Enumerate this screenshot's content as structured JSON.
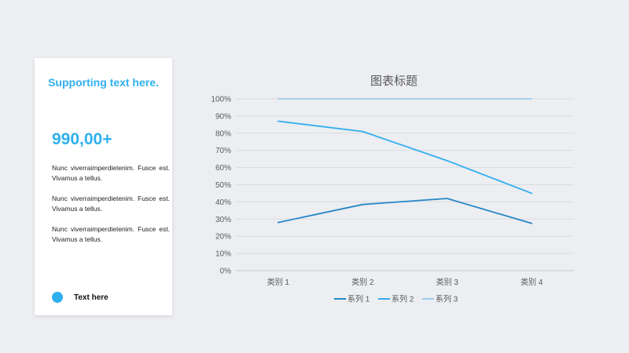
{
  "card": {
    "title": "Supporting text here.",
    "metric": "990,00+",
    "paragraphs": [
      "Nunc viverraimperdietenim. Fusce est. Vivamus a tellus.",
      "Nunc viverraimperdietenim. Fusce est. Vivamus a tellus.",
      "Nunc viverraimperdietenim. Fusce est. Vivamus a tellus."
    ],
    "footer_label": "Text here",
    "accent_color": "#2fb0ee"
  },
  "chart_data": {
    "type": "line",
    "title": "图表标题",
    "categories": [
      "类别 1",
      "类别 2",
      "类别 3",
      "类别 4"
    ],
    "series": [
      {
        "name": "系列 1",
        "values": [
          28,
          38.5,
          42,
          27.5
        ],
        "color": "#2787c8"
      },
      {
        "name": "系列 2",
        "values": [
          87,
          81,
          64,
          45
        ],
        "color": "#32aef0"
      },
      {
        "name": "系列 3",
        "values": [
          100,
          100,
          100,
          100
        ],
        "color": "#9cccee"
      }
    ],
    "ylim": [
      0,
      100
    ],
    "yticks": [
      "0%",
      "10%",
      "20%",
      "30%",
      "40%",
      "50%",
      "60%",
      "70%",
      "80%",
      "90%",
      "100%"
    ],
    "grid": true,
    "legend": "bottom"
  }
}
